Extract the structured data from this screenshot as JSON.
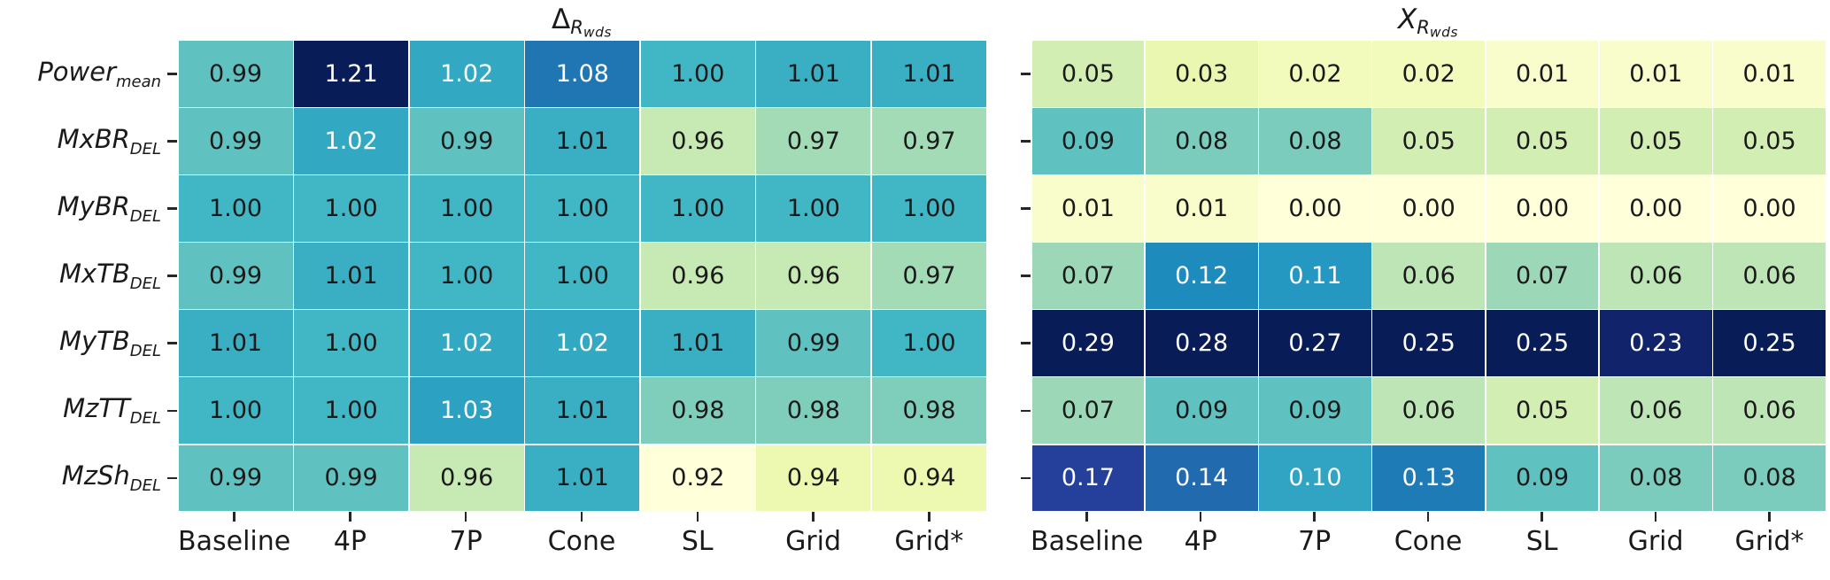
{
  "chart_data": [
    {
      "type": "heatmap",
      "title": "Delta_{R_wds}",
      "title_main": "Δ",
      "title_main_italic": false,
      "title_sub": "R",
      "title_subsub": "wds",
      "columns": [
        "Baseline",
        "4P",
        "7P",
        "Cone",
        "SL",
        "Grid",
        "Grid*"
      ],
      "rows": [
        "Power_mean",
        "MxBR_DEL",
        "MyBR_DEL",
        "MxTB_DEL",
        "MyTB_DEL",
        "MzTT_DEL",
        "MzSh_DEL"
      ],
      "row_parts": [
        {
          "base": "Power",
          "sub": "mean"
        },
        {
          "base": "MxBR",
          "sub": "DEL"
        },
        {
          "base": "MyBR",
          "sub": "DEL"
        },
        {
          "base": "MxTB",
          "sub": "DEL"
        },
        {
          "base": "MyTB",
          "sub": "DEL"
        },
        {
          "base": "MzTT",
          "sub": "DEL"
        },
        {
          "base": "MzSh",
          "sub": "DEL"
        }
      ],
      "values": [
        [
          0.99,
          1.21,
          1.02,
          1.08,
          1.0,
          1.01,
          1.01
        ],
        [
          0.99,
          1.02,
          0.99,
          1.01,
          0.96,
          0.97,
          0.97
        ],
        [
          1.0,
          1.0,
          1.0,
          1.0,
          1.0,
          1.0,
          1.0
        ],
        [
          0.99,
          1.01,
          1.0,
          1.0,
          0.96,
          0.96,
          0.97
        ],
        [
          1.01,
          1.0,
          1.02,
          1.02,
          1.01,
          0.99,
          1.0
        ],
        [
          1.0,
          1.0,
          1.03,
          1.01,
          0.98,
          0.98,
          0.98
        ],
        [
          0.99,
          0.99,
          0.96,
          1.01,
          0.92,
          0.94,
          0.94
        ]
      ],
      "value_format_decimals": 2,
      "show_row_labels": true,
      "colormap": "YlGnBu",
      "value_range": [
        0.92,
        1.21
      ],
      "color_norm_anchors": [
        [
          0.92,
          0.0
        ],
        [
          1.0,
          0.5
        ],
        [
          1.21,
          1.0
        ]
      ],
      "grid": false,
      "legend": "none"
    },
    {
      "type": "heatmap",
      "title": "X_{R_wds}",
      "title_main": "X",
      "title_main_italic": true,
      "title_sub": "R",
      "title_subsub": "wds",
      "columns": [
        "Baseline",
        "4P",
        "7P",
        "Cone",
        "SL",
        "Grid",
        "Grid*"
      ],
      "rows": [
        "Power_mean",
        "MxBR_DEL",
        "MyBR_DEL",
        "MxTB_DEL",
        "MyTB_DEL",
        "MzTT_DEL",
        "MzSh_DEL"
      ],
      "row_parts": [
        {
          "base": "Power",
          "sub": "mean"
        },
        {
          "base": "MxBR",
          "sub": "DEL"
        },
        {
          "base": "MyBR",
          "sub": "DEL"
        },
        {
          "base": "MxTB",
          "sub": "DEL"
        },
        {
          "base": "MyTB",
          "sub": "DEL"
        },
        {
          "base": "MzTT",
          "sub": "DEL"
        },
        {
          "base": "MzSh",
          "sub": "DEL"
        }
      ],
      "values": [
        [
          0.05,
          0.03,
          0.02,
          0.02,
          0.01,
          0.01,
          0.01
        ],
        [
          0.09,
          0.08,
          0.08,
          0.05,
          0.05,
          0.05,
          0.05
        ],
        [
          0.01,
          0.01,
          0.0,
          0.0,
          0.0,
          0.0,
          0.0
        ],
        [
          0.07,
          0.12,
          0.11,
          0.06,
          0.07,
          0.06,
          0.06
        ],
        [
          0.29,
          0.28,
          0.27,
          0.25,
          0.25,
          0.23,
          0.25
        ],
        [
          0.07,
          0.09,
          0.09,
          0.06,
          0.05,
          0.06,
          0.06
        ],
        [
          0.17,
          0.14,
          0.1,
          0.13,
          0.09,
          0.08,
          0.08
        ]
      ],
      "value_format_decimals": 2,
      "show_row_labels": false,
      "colormap": "YlGnBu",
      "value_range": [
        0.0,
        0.29
      ],
      "color_norm_anchors": [
        [
          0.0,
          0.0
        ],
        [
          0.03,
          0.135
        ],
        [
          0.05,
          0.21
        ],
        [
          0.09,
          0.44
        ],
        [
          0.1,
          0.56
        ],
        [
          0.14,
          0.72
        ],
        [
          0.17,
          0.84
        ],
        [
          0.25,
          1.0
        ]
      ],
      "grid": false,
      "legend": "none"
    }
  ],
  "colors": {
    "background": "#ffffff",
    "annotation_dark": "#1a1a1a",
    "annotation_light": "#ffffff",
    "tick": "#262626",
    "cell_gridline": "#ffffff"
  }
}
